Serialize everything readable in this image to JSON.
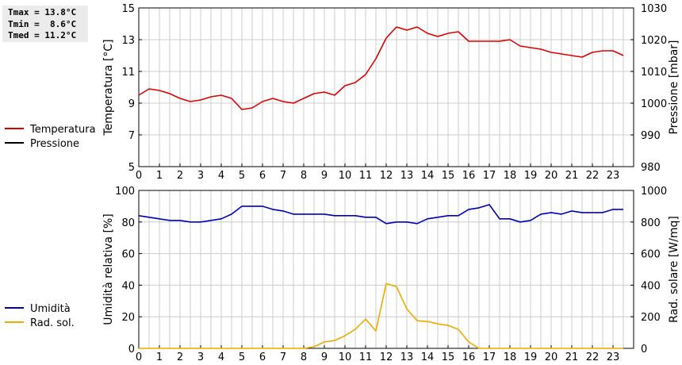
{
  "stats": {
    "tmax": "Tmax = 13.8°C",
    "tmin": "Tmin =  8.6°C",
    "tmed": "Tmed = 11.2°C"
  },
  "colors": {
    "temperature": "#dd0000",
    "pressure": "#000000",
    "humidity": "#0000bb",
    "solar": "#eeaa00",
    "grid": "#cccccc"
  },
  "chart_data": [
    {
      "type": "line",
      "x_ticks": [
        "0",
        "1",
        "2",
        "3",
        "4",
        "5",
        "6",
        "7",
        "8",
        "9",
        "10",
        "11",
        "12",
        "13",
        "14",
        "15",
        "16",
        "17",
        "18",
        "19",
        "20",
        "21",
        "22",
        "23"
      ],
      "xlim": [
        0,
        24
      ],
      "grid": true,
      "legend": "left",
      "ylabel": "Temperatura [°C]",
      "y2label": "Pressione [mbar]",
      "ylim": [
        5,
        15
      ],
      "y2lim": [
        980,
        1030
      ],
      "y_ticks": [
        "5",
        "7",
        "9",
        "11",
        "13",
        "15"
      ],
      "y2_ticks": [
        "980",
        "990",
        "1000",
        "1010",
        "1020",
        "1030"
      ],
      "series": [
        {
          "name": "Temperatura",
          "axis": "left",
          "color": "#dd0000",
          "x": [
            0,
            0.5,
            1,
            1.5,
            2,
            2.5,
            3,
            3.5,
            4,
            4.5,
            5,
            5.5,
            6,
            6.5,
            7,
            7.5,
            8,
            8.5,
            9,
            9.5,
            10,
            10.5,
            11,
            11.5,
            12,
            12.5,
            13,
            13.5,
            14,
            14.5,
            15,
            15.5,
            16,
            16.5,
            17,
            17.5,
            18,
            18.5,
            19,
            19.5,
            20,
            20.5,
            21,
            21.5,
            22,
            22.5,
            23,
            23.5
          ],
          "values": [
            9.5,
            9.9,
            9.8,
            9.6,
            9.3,
            9.1,
            9.2,
            9.4,
            9.5,
            9.3,
            8.6,
            8.7,
            9.1,
            9.3,
            9.1,
            9.0,
            9.3,
            9.6,
            9.7,
            9.5,
            10.1,
            10.3,
            10.8,
            11.8,
            13.1,
            13.8,
            13.6,
            13.8,
            13.4,
            13.2,
            13.4,
            13.5,
            12.9,
            12.9,
            12.9,
            12.9,
            13.0,
            12.6,
            12.5,
            12.4,
            12.2,
            12.1,
            12.0,
            11.9,
            12.2,
            12.3,
            12.3,
            12.0
          ]
        },
        {
          "name": "Pressione",
          "axis": "right",
          "color": "#000000",
          "x": [],
          "values": []
        }
      ]
    },
    {
      "type": "line",
      "x_ticks": [
        "0",
        "1",
        "2",
        "3",
        "4",
        "5",
        "6",
        "7",
        "8",
        "9",
        "10",
        "11",
        "12",
        "13",
        "14",
        "15",
        "16",
        "17",
        "18",
        "19",
        "20",
        "21",
        "22",
        "23"
      ],
      "xlim": [
        0,
        24
      ],
      "grid": true,
      "legend": "left",
      "ylabel": "Umidità relativa [%]",
      "y2label": "Rad. solare [W/mq]",
      "ylim": [
        0,
        100
      ],
      "y2lim": [
        0,
        1000
      ],
      "y_ticks": [
        "0",
        "20",
        "40",
        "60",
        "80",
        "100"
      ],
      "y2_ticks": [
        "0",
        "200",
        "400",
        "600",
        "800",
        "1000"
      ],
      "series": [
        {
          "name": "Umidità",
          "axis": "left",
          "color": "#0000bb",
          "x": [
            0,
            0.5,
            1,
            1.5,
            2,
            2.5,
            3,
            3.5,
            4,
            4.5,
            5,
            5.5,
            6,
            6.5,
            7,
            7.5,
            8,
            8.5,
            9,
            9.5,
            10,
            10.5,
            11,
            11.5,
            12,
            12.5,
            13,
            13.5,
            14,
            14.5,
            15,
            15.5,
            16,
            16.5,
            17,
            17.5,
            18,
            18.5,
            19,
            19.5,
            20,
            20.5,
            21,
            21.5,
            22,
            22.5,
            23,
            23.5
          ],
          "values": [
            84,
            83,
            82,
            81,
            81,
            80,
            80,
            81,
            82,
            85,
            90,
            90,
            90,
            88,
            87,
            85,
            85,
            85,
            85,
            84,
            84,
            84,
            83,
            83,
            79,
            80,
            80,
            79,
            82,
            83,
            84,
            84,
            88,
            89,
            91,
            82,
            82,
            80,
            81,
            85,
            86,
            85,
            87,
            86,
            86,
            86,
            88,
            88
          ]
        },
        {
          "name": "Rad. sol.",
          "axis": "right",
          "color": "#eeaa00",
          "x": [
            0,
            0.5,
            1,
            1.5,
            2,
            2.5,
            3,
            3.5,
            4,
            4.5,
            5,
            5.5,
            6,
            6.5,
            7,
            7.5,
            8,
            8.5,
            9,
            9.5,
            10,
            10.5,
            11,
            11.5,
            12,
            12.5,
            13,
            13.5,
            14,
            14.5,
            15,
            15.5,
            16,
            16.5,
            17,
            17.5,
            18,
            18.5,
            19,
            19.5,
            20,
            20.5,
            21,
            21.5,
            22,
            22.5,
            23,
            23.5
          ],
          "values": [
            0,
            0,
            0,
            0,
            0,
            0,
            0,
            0,
            0,
            0,
            0,
            0,
            0,
            0,
            0,
            0,
            0,
            10,
            40,
            50,
            80,
            120,
            185,
            110,
            410,
            390,
            250,
            175,
            170,
            155,
            145,
            120,
            40,
            0,
            0,
            0,
            0,
            0,
            0,
            0,
            0,
            0,
            0,
            0,
            0,
            0,
            0,
            0
          ]
        }
      ]
    }
  ]
}
